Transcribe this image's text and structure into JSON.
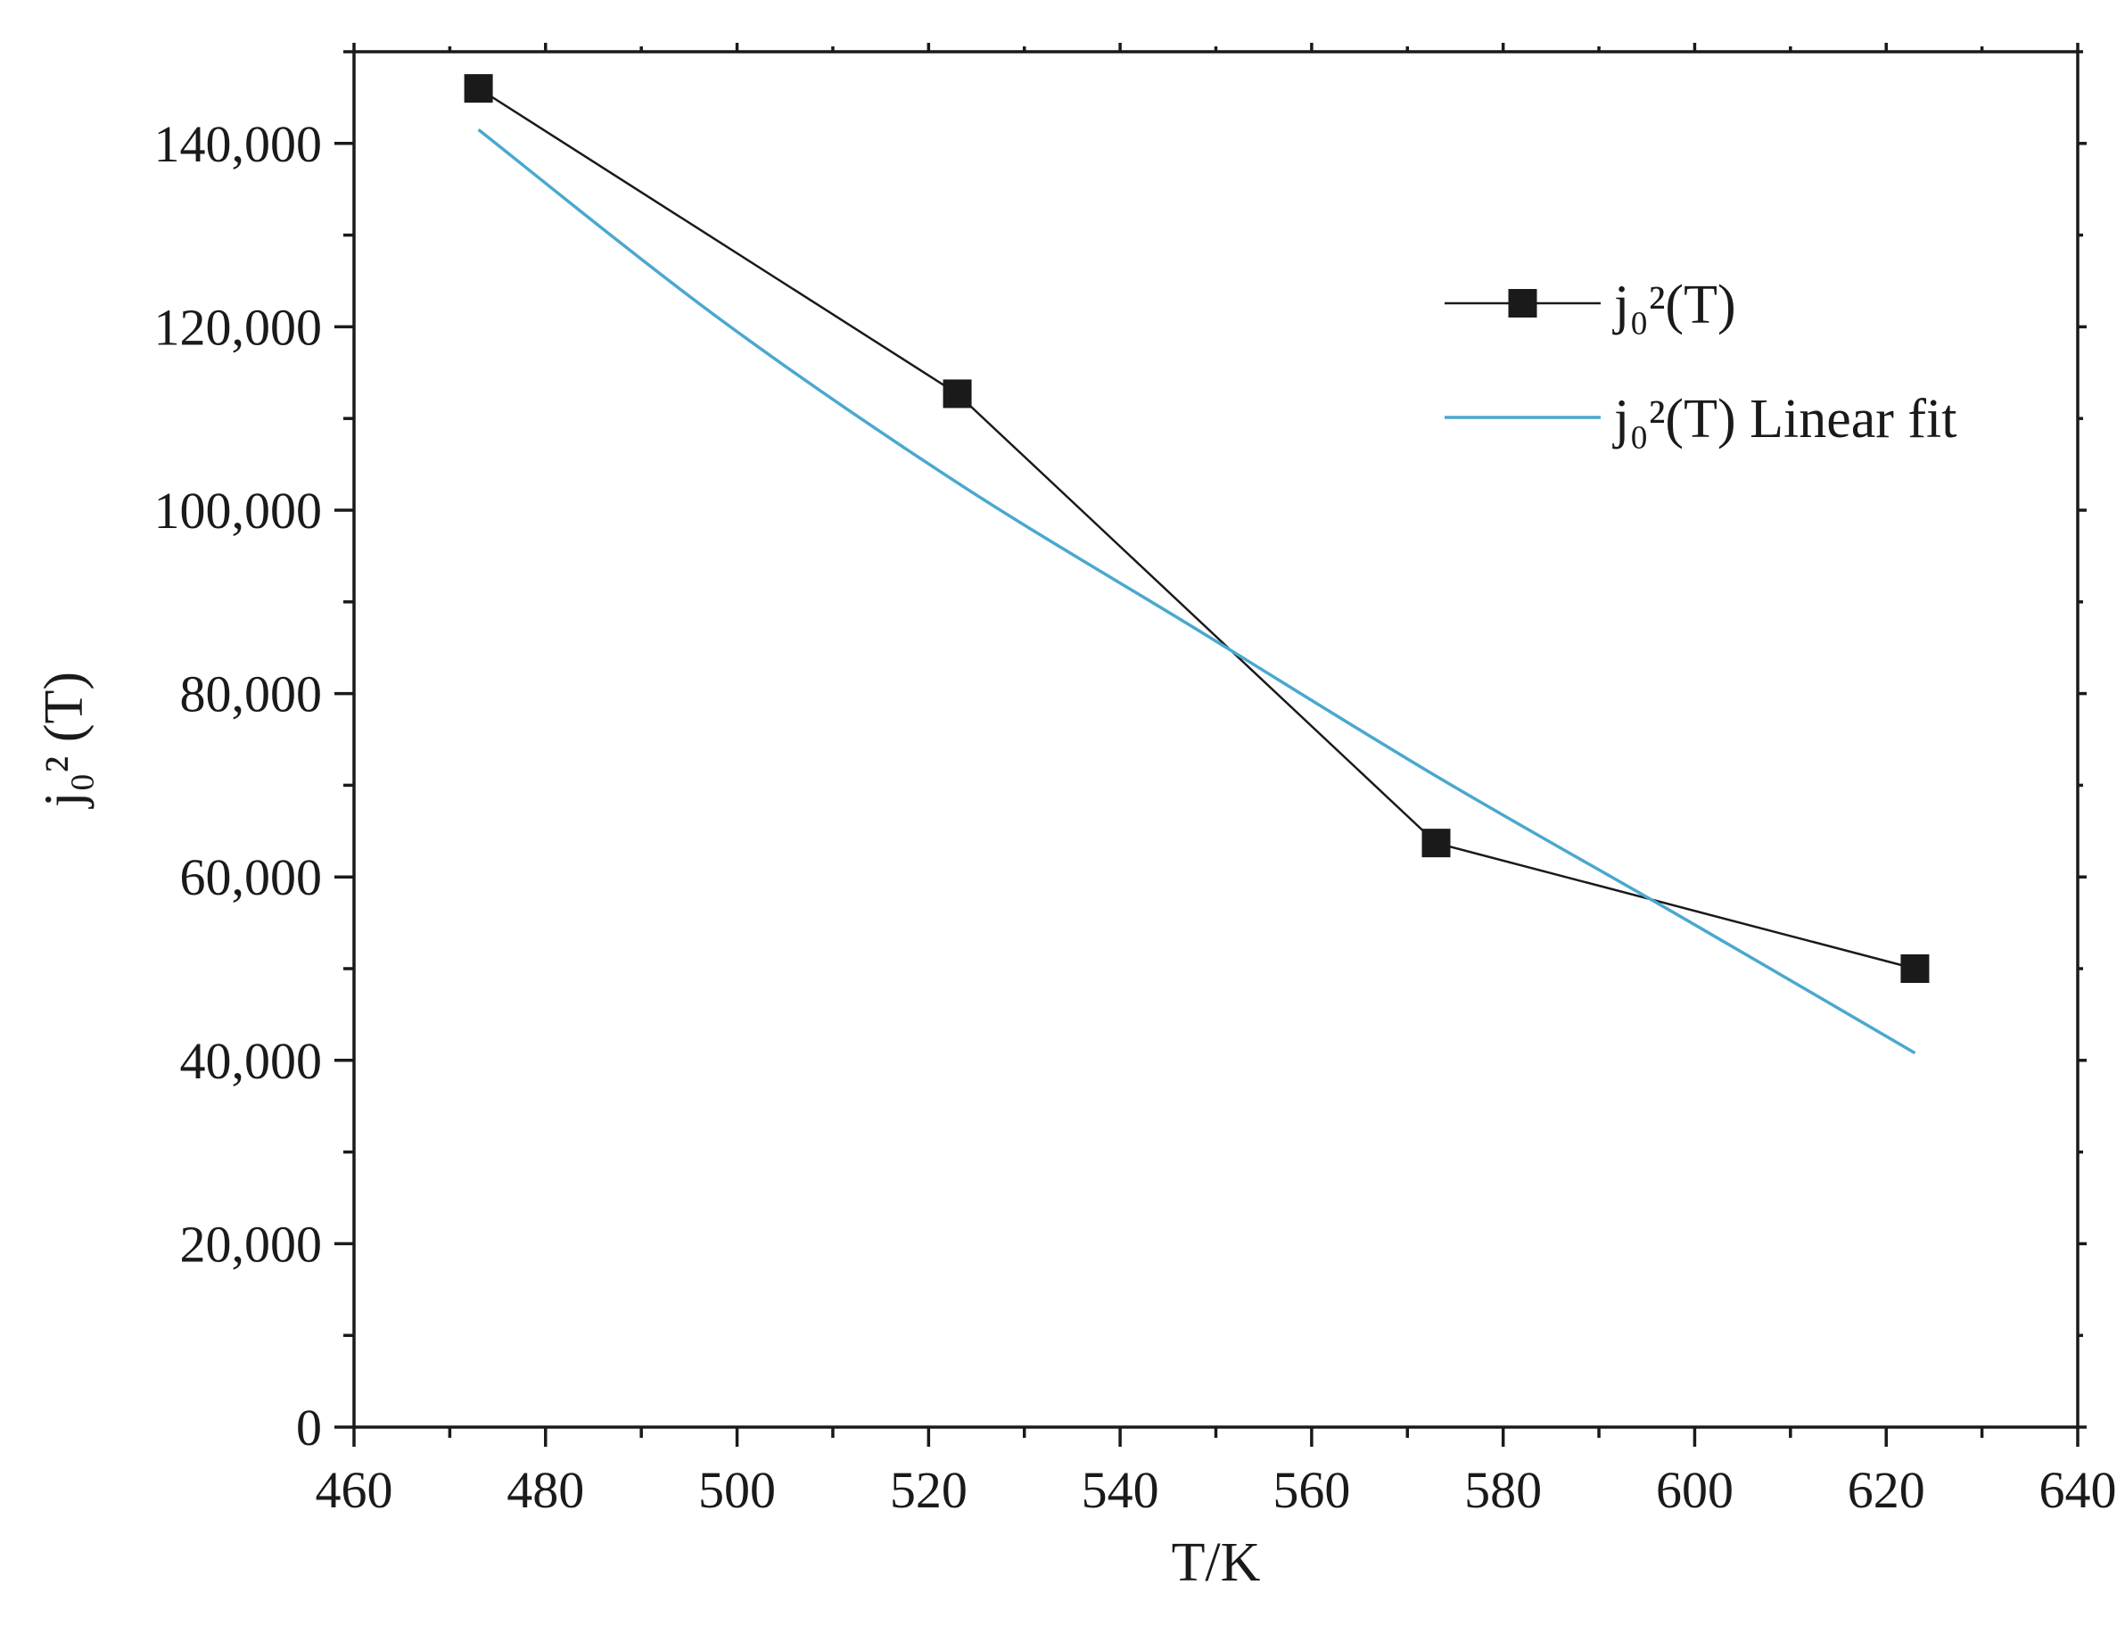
{
  "chart_data": {
    "type": "line",
    "xlabel": "T/K",
    "ylabel": "j₀² (T)",
    "xlim": [
      460,
      640
    ],
    "ylim": [
      0,
      150000
    ],
    "x_ticks": [
      "460",
      "480",
      "500",
      "520",
      "540",
      "560",
      "580",
      "600",
      "620",
      "640"
    ],
    "y_ticks": [
      "0",
      "20,000",
      "40,000",
      "60,000",
      "80,000",
      "100,000",
      "120,000",
      "140,000"
    ],
    "grid": false,
    "legend_position": "top-right",
    "series": [
      {
        "name": "j₀²(T)",
        "color": "#1a1a1a",
        "marker": "square",
        "x": [
          473,
          523,
          573,
          623
        ],
        "y": [
          146000,
          112700,
          63700,
          50000
        ]
      },
      {
        "name": "j₀²(T) Linear fit",
        "color": "#4aa8cf",
        "marker": "none",
        "x": [
          473,
          498,
          523,
          548,
          573,
          598,
          623
        ],
        "y": [
          141500,
          121000,
          103000,
          87000,
          71000,
          56000,
          40800
        ]
      }
    ]
  }
}
